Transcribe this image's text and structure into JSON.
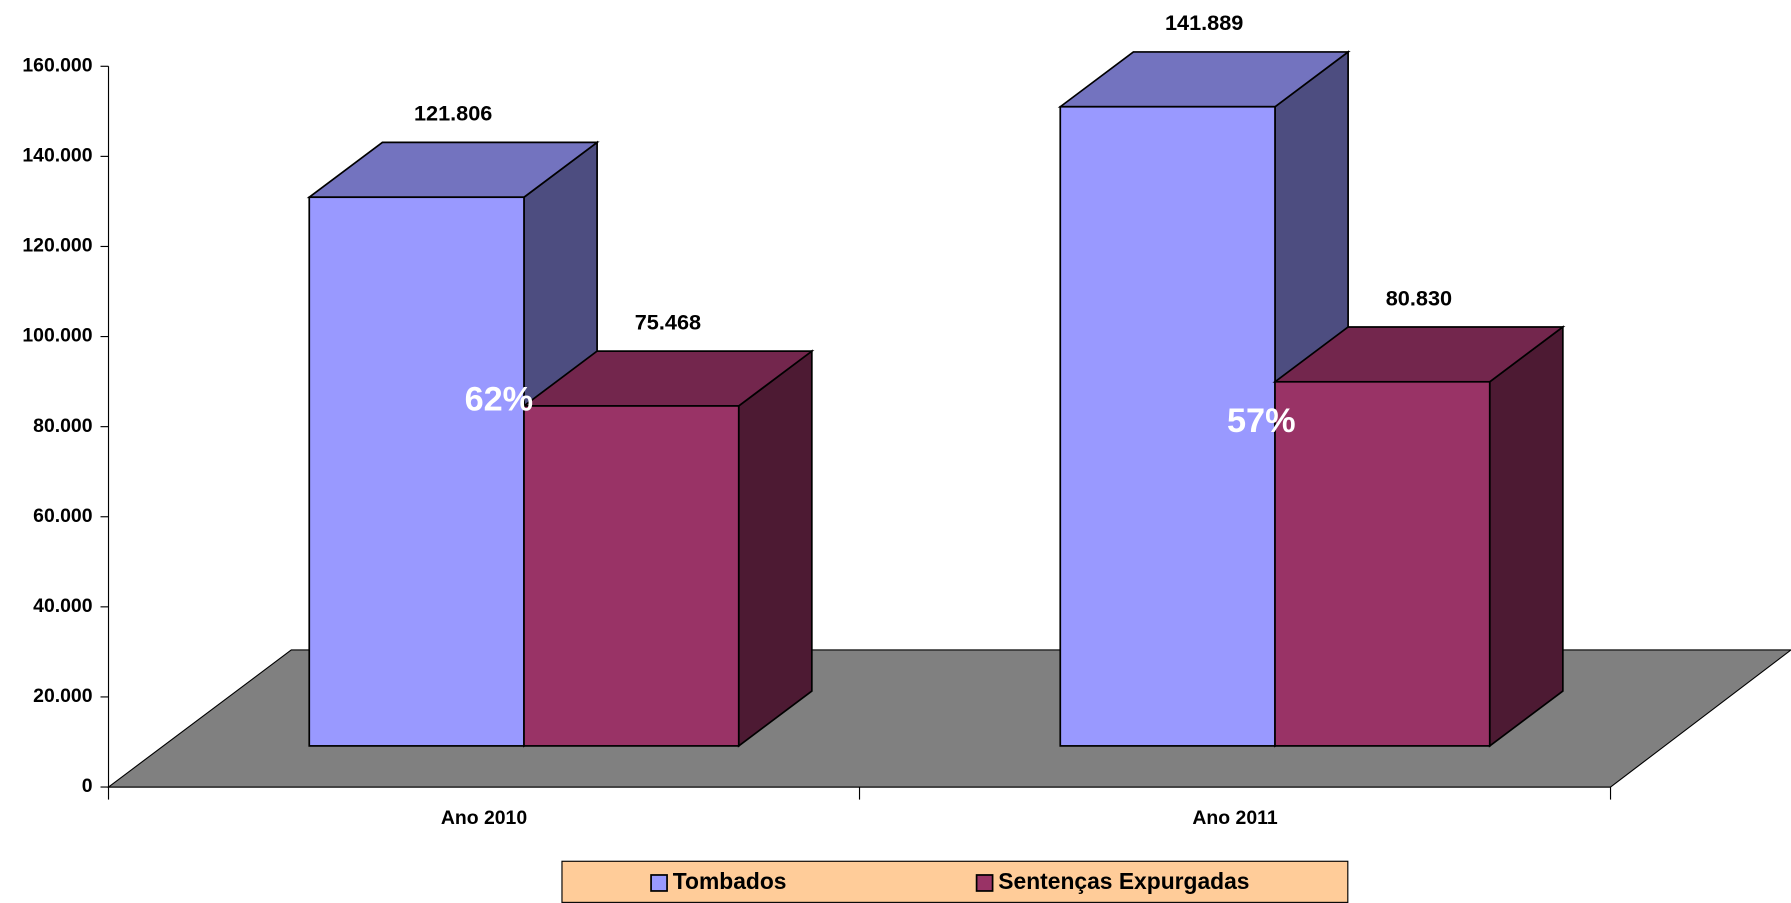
{
  "chart_data": {
    "type": "bar3d",
    "categories": [
      "Ano 2010",
      "Ano 2011"
    ],
    "series": [
      {
        "name": "Tombados",
        "color": "#9999ff",
        "values": [
          121806,
          141889
        ],
        "value_labels": [
          "121.806",
          "141.889"
        ]
      },
      {
        "name": "Sentenças Expurgadas",
        "color": "#993366",
        "values": [
          75468,
          80830
        ],
        "value_labels": [
          "75.468",
          "80.830"
        ]
      }
    ],
    "annotations": [
      "62%",
      "57%"
    ],
    "ylim": [
      0,
      160000
    ],
    "yticks": [
      0,
      {
        "value": 20000,
        "label": "20.000"
      },
      {
        "value": 40000,
        "label": "40.000"
      },
      {
        "value": 60000,
        "label": "60.000"
      },
      {
        "value": 80000,
        "label": "80.000"
      },
      {
        "value": 100000,
        "label": "100.000"
      },
      {
        "value": 120000,
        "label": "120.000"
      },
      {
        "value": 140000,
        "label": "140.000"
      },
      {
        "value": 160000,
        "label": "160.000"
      }
    ],
    "floor_color": "#808080",
    "legend_color": "#ffcc99",
    "legend": "bottom"
  }
}
